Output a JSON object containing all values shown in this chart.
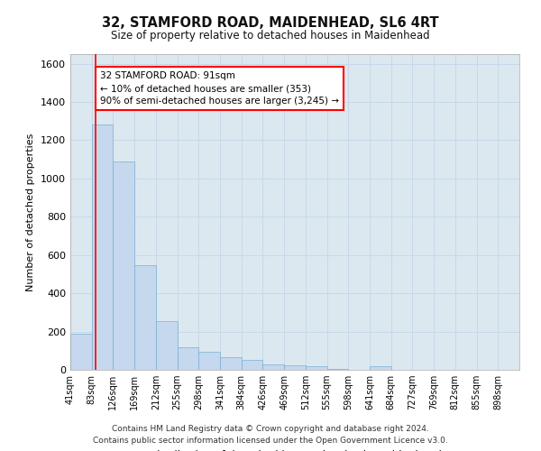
{
  "title1": "32, STAMFORD ROAD, MAIDENHEAD, SL6 4RT",
  "title2": "Size of property relative to detached houses in Maidenhead",
  "xlabel": "Distribution of detached houses by size in Maidenhead",
  "ylabel": "Number of detached properties",
  "bar_labels": [
    "41sqm",
    "83sqm",
    "126sqm",
    "169sqm",
    "212sqm",
    "255sqm",
    "298sqm",
    "341sqm",
    "384sqm",
    "426sqm",
    "469sqm",
    "512sqm",
    "555sqm",
    "598sqm",
    "641sqm",
    "684sqm",
    "727sqm",
    "769sqm",
    "812sqm",
    "855sqm",
    "898sqm"
  ],
  "bar_values": [
    190,
    1280,
    1090,
    545,
    255,
    120,
    95,
    65,
    50,
    30,
    22,
    18,
    5,
    0,
    20,
    0,
    0,
    0,
    0,
    0,
    0
  ],
  "bar_color": "#c5d8ee",
  "bar_edge_color": "#7aafd4",
  "grid_color": "#c8d8e8",
  "bg_color": "#dce8f0",
  "annotation_text": "32 STAMFORD ROAD: 91sqm\n← 10% of detached houses are smaller (353)\n90% of semi-detached houses are larger (3,245) →",
  "vline_x_index": 1.186,
  "ylim": [
    0,
    1650
  ],
  "yticks": [
    0,
    200,
    400,
    600,
    800,
    1000,
    1200,
    1400,
    1600
  ],
  "footer1": "Contains HM Land Registry data © Crown copyright and database right 2024.",
  "footer2": "Contains public sector information licensed under the Open Government Licence v3.0."
}
